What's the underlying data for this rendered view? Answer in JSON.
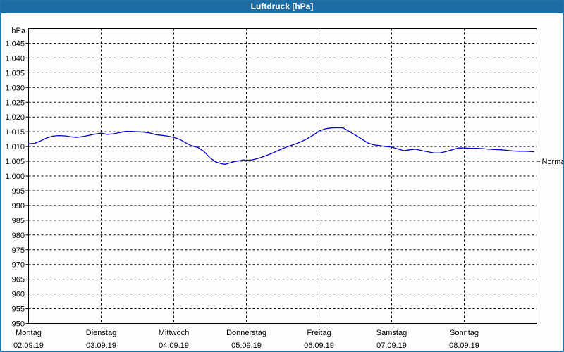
{
  "window": {
    "title": "Luftdruck [hPa]",
    "titlebar_color": "#1e6ca4",
    "frame_color": "#2271a5",
    "background_color": "#fdfdfd"
  },
  "chart_data": {
    "type": "line",
    "title": "Luftdruck [hPa]",
    "grid": "dashed",
    "plot_bg": "#fefefe",
    "axis_color": "#000000",
    "y_axis": {
      "unit_label": "hPa",
      "min": 950,
      "max": 1050,
      "tick_step": 5,
      "ticks": [
        {
          "value": 1045,
          "label": "1.045"
        },
        {
          "value": 1040,
          "label": "1.040"
        },
        {
          "value": 1035,
          "label": "1.035"
        },
        {
          "value": 1030,
          "label": "1.030"
        },
        {
          "value": 1025,
          "label": "1.025"
        },
        {
          "value": 1020,
          "label": "1.020"
        },
        {
          "value": 1015,
          "label": "1.015"
        },
        {
          "value": 1010,
          "label": "1.010"
        },
        {
          "value": 1005,
          "label": "1.005"
        },
        {
          "value": 1000,
          "label": "1.000"
        },
        {
          "value": 995,
          "label": "995"
        },
        {
          "value": 990,
          "label": "990"
        },
        {
          "value": 985,
          "label": "985"
        },
        {
          "value": 980,
          "label": "980"
        },
        {
          "value": 975,
          "label": "975"
        },
        {
          "value": 970,
          "label": "970"
        },
        {
          "value": 965,
          "label": "965"
        },
        {
          "value": 960,
          "label": "960"
        },
        {
          "value": 955,
          "label": "955"
        },
        {
          "value": 950,
          "label": "950"
        }
      ]
    },
    "x_axis": {
      "total_hours": 168,
      "days": [
        {
          "name": "Montag",
          "date": "02.09.19"
        },
        {
          "name": "Dienstag",
          "date": "03.09.19"
        },
        {
          "name": "Mittwoch",
          "date": "04.09.19"
        },
        {
          "name": "Donnerstag",
          "date": "05.09.19"
        },
        {
          "name": "Freitag",
          "date": "06.09.19"
        },
        {
          "name": "Samstag",
          "date": "07.09.19"
        },
        {
          "name": "Sonntag",
          "date": "08.09.19"
        }
      ]
    },
    "normal_marker": {
      "label": "Normal",
      "value": 1005
    },
    "series": [
      {
        "name": "Luftdruck",
        "color": "#0000c8",
        "points": [
          [
            0,
            1010.9
          ],
          [
            2,
            1011.1
          ],
          [
            4,
            1011.9
          ],
          [
            6,
            1012.9
          ],
          [
            8,
            1013.5
          ],
          [
            10,
            1013.7
          ],
          [
            12,
            1013.6
          ],
          [
            14,
            1013.3
          ],
          [
            16,
            1013.1
          ],
          [
            18,
            1013.4
          ],
          [
            20,
            1013.8
          ],
          [
            22,
            1014.2
          ],
          [
            24,
            1014.5
          ],
          [
            26,
            1014.1
          ],
          [
            28,
            1014.3
          ],
          [
            30,
            1014.7
          ],
          [
            32,
            1015.1
          ],
          [
            34,
            1015.1
          ],
          [
            36,
            1015.0
          ],
          [
            38,
            1014.9
          ],
          [
            40,
            1014.6
          ],
          [
            42,
            1014.0
          ],
          [
            44,
            1013.8
          ],
          [
            46,
            1013.5
          ],
          [
            48,
            1013.1
          ],
          [
            50,
            1012.4
          ],
          [
            52,
            1011.2
          ],
          [
            54,
            1010.2
          ],
          [
            56,
            1009.7
          ],
          [
            58,
            1008.3
          ],
          [
            60,
            1006.1
          ],
          [
            62,
            1004.7
          ],
          [
            64,
            1004.1
          ],
          [
            65,
            1004.0
          ],
          [
            66,
            1004.3
          ],
          [
            68,
            1004.9
          ],
          [
            70,
            1005.2
          ],
          [
            71,
            1005.5
          ],
          [
            72,
            1005.3
          ],
          [
            74,
            1005.5
          ],
          [
            76,
            1006.0
          ],
          [
            78,
            1006.7
          ],
          [
            80,
            1007.5
          ],
          [
            82,
            1008.4
          ],
          [
            84,
            1009.3
          ],
          [
            86,
            1010.1
          ],
          [
            88,
            1010.8
          ],
          [
            90,
            1011.6
          ],
          [
            92,
            1012.6
          ],
          [
            94,
            1013.8
          ],
          [
            96,
            1015.2
          ],
          [
            98,
            1016.0
          ],
          [
            100,
            1016.3
          ],
          [
            102,
            1016.4
          ],
          [
            104,
            1016.3
          ],
          [
            106,
            1015.1
          ],
          [
            108,
            1013.9
          ],
          [
            110,
            1012.6
          ],
          [
            112,
            1011.3
          ],
          [
            114,
            1010.6
          ],
          [
            116,
            1010.3
          ],
          [
            118,
            1010.0
          ],
          [
            120,
            1009.8
          ],
          [
            122,
            1009.2
          ],
          [
            124,
            1008.6
          ],
          [
            126,
            1008.9
          ],
          [
            128,
            1009.1
          ],
          [
            130,
            1008.6
          ],
          [
            132,
            1008.2
          ],
          [
            134,
            1007.8
          ],
          [
            136,
            1007.8
          ],
          [
            138,
            1008.3
          ],
          [
            140,
            1008.9
          ],
          [
            142,
            1009.5
          ],
          [
            144,
            1009.5
          ],
          [
            146,
            1009.4
          ],
          [
            148,
            1009.4
          ],
          [
            150,
            1009.3
          ],
          [
            152,
            1009.1
          ],
          [
            154,
            1009.0
          ],
          [
            156,
            1008.9
          ],
          [
            158,
            1008.7
          ],
          [
            160,
            1008.5
          ],
          [
            162,
            1008.4
          ],
          [
            164,
            1008.4
          ],
          [
            166,
            1008.3
          ],
          [
            167,
            1008.2
          ]
        ]
      }
    ]
  }
}
